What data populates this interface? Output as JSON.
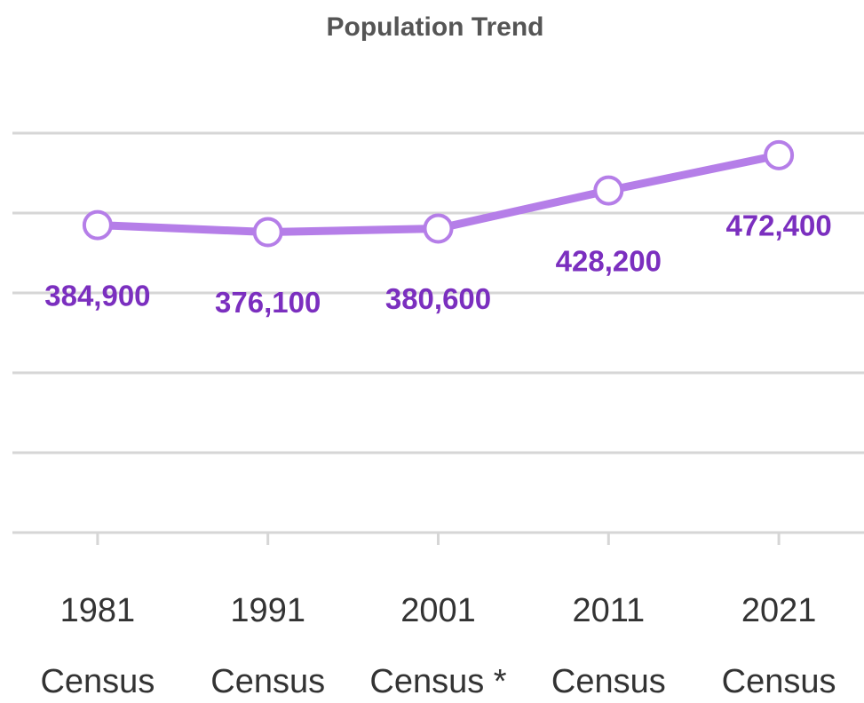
{
  "chart_data": {
    "type": "line",
    "title": "Population Trend",
    "categories": [
      "1981 Census",
      "1991 Census",
      "2001 Census *",
      "2011 Census",
      "2021 Census"
    ],
    "values": [
      384900,
      376100,
      380600,
      428200,
      472400
    ],
    "value_labels": [
      "384,900",
      "376,100",
      "380,600",
      "428,200",
      "472,400"
    ],
    "color": "#b57ee8",
    "label_color": "#7b2fbf",
    "ylim": [
      0,
      500000
    ],
    "yticks": [
      0,
      100000,
      200000,
      300000,
      400000,
      500000
    ],
    "grid": true
  }
}
